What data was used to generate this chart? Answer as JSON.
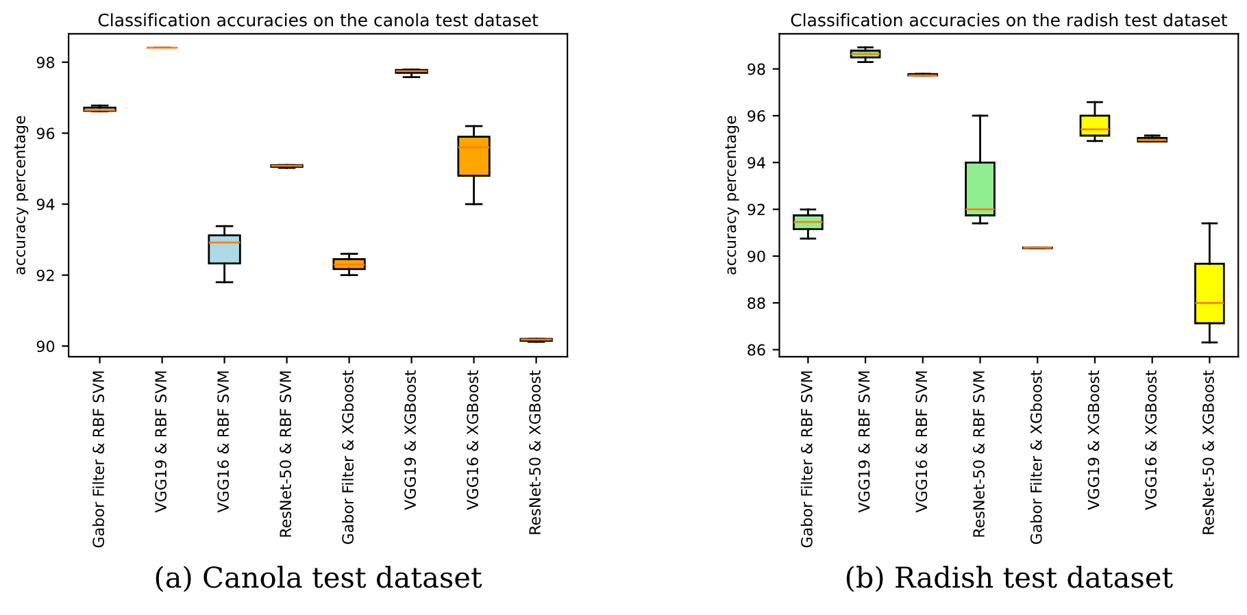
{
  "chart_data": [
    {
      "type": "box",
      "title": "Classification accuracies on the canola test dataset",
      "ylabel": "accuracy percentage",
      "categories": [
        "Gabor Filter & RBF SVM",
        "VGG19 & RBF SVM",
        "VGG16 & RBF SVM",
        "ResNet-50 & RBF SVM",
        "Gabor Filter & XGboost",
        "VGG19 & XGBoost",
        "VGG16 & XGBoost",
        "ResNet-50 & XGBoost"
      ],
      "boxes": [
        {
          "low": 96.62,
          "q1": 96.63,
          "median": 96.65,
          "q3": 96.72,
          "high": 96.78
        },
        {
          "low": 98.41,
          "q1": 98.41,
          "median": 98.41,
          "q3": 98.41,
          "high": 98.41
        },
        {
          "low": 91.8,
          "q1": 92.33,
          "median": 92.92,
          "q3": 93.12,
          "high": 93.38
        },
        {
          "low": 95.02,
          "q1": 95.05,
          "median": 95.08,
          "q3": 95.1,
          "high": 95.1
        },
        {
          "low": 92.0,
          "q1": 92.17,
          "median": 92.3,
          "q3": 92.45,
          "high": 92.6
        },
        {
          "low": 97.58,
          "q1": 97.7,
          "median": 97.75,
          "q3": 97.78,
          "high": 97.79
        },
        {
          "low": 94.0,
          "q1": 94.8,
          "median": 95.6,
          "q3": 95.9,
          "high": 96.2
        },
        {
          "low": 90.12,
          "q1": 90.15,
          "median": 90.18,
          "q3": 90.2,
          "high": 90.2
        }
      ],
      "colors": [
        "#add8e6",
        null,
        "#add8e6",
        "#add8e6",
        "#ffa500",
        "#ffa500",
        "#ffa500",
        "#ffa500"
      ],
      "ylim": [
        89.7,
        98.8
      ],
      "yticks": [
        90,
        92,
        94,
        96,
        98
      ],
      "grid": false,
      "annotations": [
        "(a) Canola test dataset"
      ]
    },
    {
      "type": "box",
      "title": "Classification accuracies on the radish test dataset",
      "ylabel": "accuracy percentage",
      "categories": [
        "Gabor Filter & RBF SVM",
        "VGG19 & RBF SVM",
        "VGG16 & RBF SVM",
        "ResNet-50 & RBF SVM",
        "Gabor Filter & XGboost",
        "VGG19 & XGBoost",
        "VGG16 & XGBoost",
        "ResNet-50 & XGBoost"
      ],
      "boxes": [
        {
          "low": 90.75,
          "q1": 91.15,
          "median": 91.46,
          "q3": 91.74,
          "high": 91.99
        },
        {
          "low": 98.29,
          "q1": 98.49,
          "median": 98.64,
          "q3": 98.78,
          "high": 98.92
        },
        {
          "low": 97.72,
          "q1": 97.72,
          "median": 97.72,
          "q3": 97.78,
          "high": 97.79
        },
        {
          "low": 91.4,
          "q1": 91.74,
          "median": 92.0,
          "q3": 94.0,
          "high": 96.0
        },
        {
          "low": 90.34,
          "q1": 90.34,
          "median": 90.36,
          "q3": 90.37,
          "high": 90.37
        },
        {
          "low": 94.92,
          "q1": 95.15,
          "median": 95.42,
          "q3": 96.0,
          "high": 96.58
        },
        {
          "low": 94.9,
          "q1": 94.9,
          "median": 94.96,
          "q3": 95.05,
          "high": 95.15
        },
        {
          "low": 86.31,
          "q1": 87.13,
          "median": 88.0,
          "q3": 89.67,
          "high": 91.4
        }
      ],
      "colors": [
        "#90ee90",
        "#90ee90",
        "#90ee90",
        "#90ee90",
        "#ffff00",
        "#ffff00",
        "#ffff00",
        "#ffff00"
      ],
      "ylim": [
        85.7,
        99.5
      ],
      "yticks": [
        86,
        88,
        90,
        92,
        94,
        96,
        98
      ],
      "grid": false,
      "annotations": [
        "(b) Radish test dataset"
      ]
    }
  ]
}
